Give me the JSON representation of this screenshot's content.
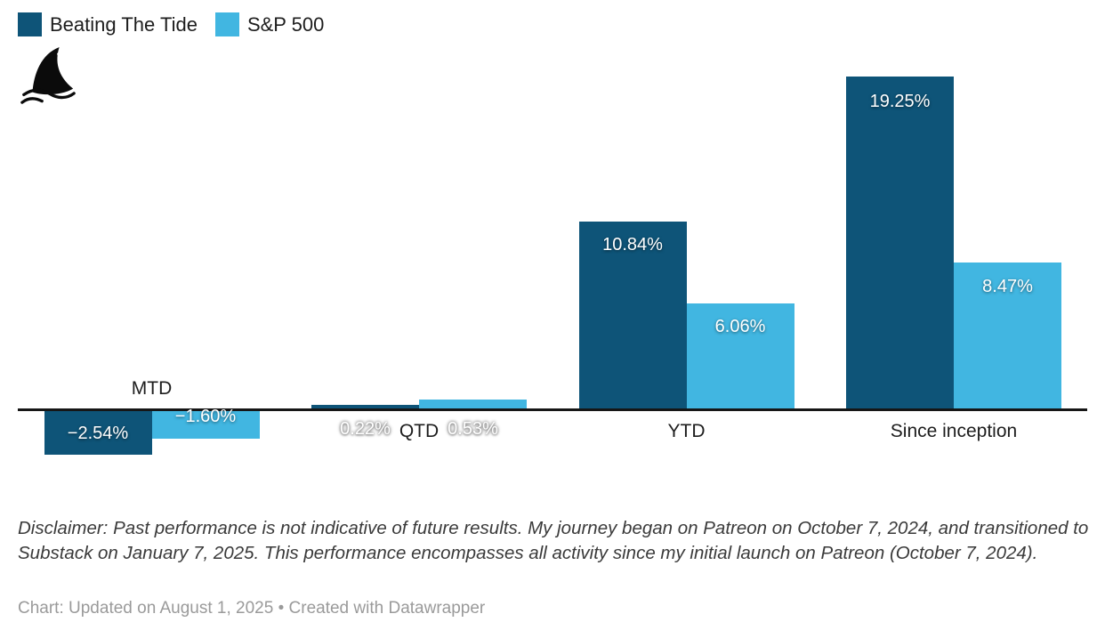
{
  "legend": {
    "items": [
      {
        "label": "Beating The Tide"
      },
      {
        "label": "S&P 500"
      }
    ]
  },
  "chart_data": {
    "type": "bar",
    "categories": [
      "MTD",
      "QTD",
      "YTD",
      "Since inception"
    ],
    "series": [
      {
        "name": "Beating The Tide",
        "color": "#0e5478",
        "values": [
          -2.54,
          0.22,
          10.84,
          19.25
        ],
        "value_labels": [
          "−2.54%",
          "0.22%",
          "10.84%",
          "19.25%"
        ]
      },
      {
        "name": "S&P 500",
        "color": "#41b6e1",
        "values": [
          -1.6,
          0.53,
          6.06,
          8.47
        ],
        "value_labels": [
          "−1.60%",
          "0.53%",
          "6.06%",
          "8.47%"
        ]
      }
    ],
    "title": "",
    "xlabel": "",
    "ylabel": "",
    "value_suffix": "%",
    "baseline_value": 0,
    "grid": false,
    "axis_labels_visible": false,
    "legend_position": "top-left"
  },
  "notes": {
    "disclaimer": "Disclaimer: Past performance is not indicative of future results. My journey began on Patreon on October 7, 2024, and transitioned to Substack on January 7, 2025. This performance encompasses all activity since my initial launch on Patreon (October 7, 2024)."
  },
  "footer": {
    "text": "Chart: Updated on August 1, 2025 • Created with Datawrapper"
  }
}
